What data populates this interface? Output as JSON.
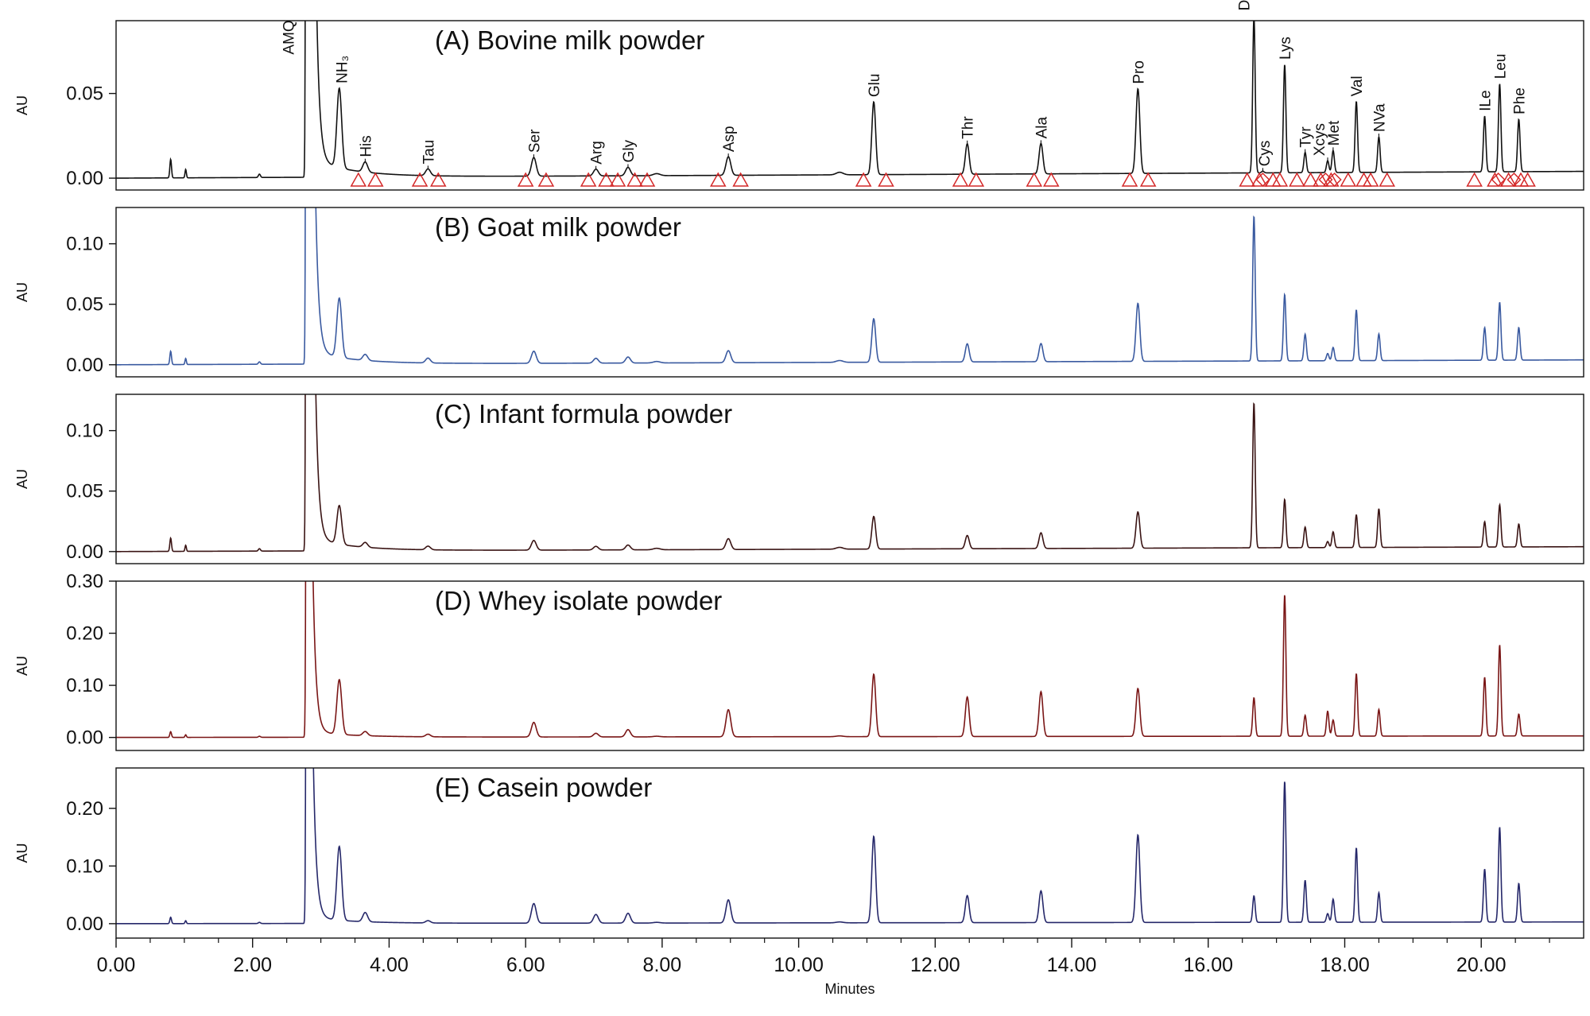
{
  "chart_data": {
    "type": "line",
    "xlabel": "Minutes",
    "ylabel": "AU",
    "xlim": [
      0,
      21.5
    ],
    "x_ticks": [
      0,
      2,
      4,
      6,
      8,
      10,
      12,
      14,
      16,
      18,
      20
    ],
    "x_tick_labels": [
      "0.00",
      "2.00",
      "4.00",
      "6.00",
      "8.00",
      "10.00",
      "12.00",
      "14.00",
      "16.00",
      "18.00",
      "20.00"
    ],
    "baseline_peaks": [
      {
        "t": 0.8,
        "h": 0.011,
        "w": 0.012
      },
      {
        "t": 1.02,
        "h": 0.005,
        "w": 0.01
      },
      {
        "t": 2.1,
        "h": 0.002,
        "w": 0.015
      },
      {
        "t": 10.6,
        "h": 0.0015,
        "w": 0.05
      },
      {
        "t": 7.92,
        "h": 0.0012,
        "w": 0.05
      }
    ],
    "amq_peak": {
      "t": 2.8,
      "height": 2.0
    },
    "panels": [
      {
        "id": "A",
        "title": "(A) Bovine milk powder",
        "color": "#111111",
        "ylim": [
          -0.007,
          0.093
        ],
        "y_ticks": [
          0.0,
          0.05
        ],
        "y_tick_labels": [
          "0.00",
          "0.05"
        ],
        "baseline_end": 0.004,
        "show_markers": true,
        "peaks": [
          {
            "name": "NH₃",
            "t": 3.27,
            "h": 0.047
          },
          {
            "name": "His",
            "t": 3.65,
            "h": 0.006
          },
          {
            "name": "Tau",
            "t": 4.57,
            "h": 0.004
          },
          {
            "name": "Ser",
            "t": 6.12,
            "h": 0.011
          },
          {
            "name": "Arg",
            "t": 7.03,
            "h": 0.004
          },
          {
            "name": "Gly",
            "t": 7.5,
            "h": 0.005
          },
          {
            "name": "Asp",
            "t": 8.97,
            "h": 0.011
          },
          {
            "name": "Glu",
            "t": 11.1,
            "h": 0.043
          },
          {
            "name": "Thr",
            "t": 12.47,
            "h": 0.018
          },
          {
            "name": "Ala",
            "t": 13.55,
            "h": 0.018
          },
          {
            "name": "Pro",
            "t": 14.97,
            "h": 0.05
          },
          {
            "name": "Deriv Peak",
            "t": 16.67,
            "h": 0.093
          },
          {
            "name": "Cys",
            "t": 16.8,
            "h": 0.001
          },
          {
            "name": "Lys",
            "t": 17.12,
            "h": 0.064
          },
          {
            "name": "Tyr",
            "t": 17.42,
            "h": 0.012
          },
          {
            "name": "Xcys",
            "t": 17.75,
            "h": 0.007
          },
          {
            "name": "Met",
            "t": 17.83,
            "h": 0.013
          },
          {
            "name": "Val",
            "t": 18.17,
            "h": 0.042
          },
          {
            "name": "NVa",
            "t": 18.5,
            "h": 0.021
          },
          {
            "name": "ILe",
            "t": 20.05,
            "h": 0.033
          },
          {
            "name": "Leu",
            "t": 20.27,
            "h": 0.052
          },
          {
            "name": "Phe",
            "t": 20.55,
            "h": 0.031
          }
        ]
      },
      {
        "id": "B",
        "title": "(B) Goat milk powder",
        "color": "#3a5aa0",
        "ylim": [
          -0.01,
          0.13
        ],
        "y_ticks": [
          0.0,
          0.05,
          0.1
        ],
        "y_tick_labels": [
          "0.00",
          "0.05",
          "0.10"
        ],
        "baseline_end": 0.004,
        "show_markers": false,
        "peaks": [
          {
            "name": "NH₃",
            "t": 3.27,
            "h": 0.049
          },
          {
            "name": "His",
            "t": 3.65,
            "h": 0.005
          },
          {
            "name": "Tau",
            "t": 4.57,
            "h": 0.004
          },
          {
            "name": "Ser",
            "t": 6.12,
            "h": 0.01
          },
          {
            "name": "Arg",
            "t": 7.03,
            "h": 0.004
          },
          {
            "name": "Gly",
            "t": 7.5,
            "h": 0.005
          },
          {
            "name": "Asp",
            "t": 8.97,
            "h": 0.01
          },
          {
            "name": "Glu",
            "t": 11.1,
            "h": 0.036
          },
          {
            "name": "Thr",
            "t": 12.47,
            "h": 0.015
          },
          {
            "name": "Ala",
            "t": 13.55,
            "h": 0.015
          },
          {
            "name": "Pro",
            "t": 14.97,
            "h": 0.048
          },
          {
            "name": "Deriv Peak",
            "t": 16.67,
            "h": 0.12
          },
          {
            "name": "Lys",
            "t": 17.12,
            "h": 0.055
          },
          {
            "name": "Tyr",
            "t": 17.42,
            "h": 0.022
          },
          {
            "name": "Xcys",
            "t": 17.75,
            "h": 0.006
          },
          {
            "name": "Met",
            "t": 17.83,
            "h": 0.011
          },
          {
            "name": "Val",
            "t": 18.17,
            "h": 0.042
          },
          {
            "name": "NVa",
            "t": 18.5,
            "h": 0.022
          },
          {
            "name": "ILe",
            "t": 20.05,
            "h": 0.027
          },
          {
            "name": "Leu",
            "t": 20.27,
            "h": 0.048
          },
          {
            "name": "Phe",
            "t": 20.55,
            "h": 0.027
          }
        ]
      },
      {
        "id": "C",
        "title": "(C) Infant formula powder",
        "color": "#3a1414",
        "ylim": [
          -0.01,
          0.13
        ],
        "y_ticks": [
          0.0,
          0.05,
          0.1
        ],
        "y_tick_labels": [
          "0.00",
          "0.05",
          "0.10"
        ],
        "baseline_end": 0.004,
        "show_markers": false,
        "peaks": [
          {
            "name": "NH₃",
            "t": 3.27,
            "h": 0.032
          },
          {
            "name": "His",
            "t": 3.65,
            "h": 0.004
          },
          {
            "name": "Tau",
            "t": 4.57,
            "h": 0.003
          },
          {
            "name": "Ser",
            "t": 6.12,
            "h": 0.008
          },
          {
            "name": "Arg",
            "t": 7.03,
            "h": 0.003
          },
          {
            "name": "Gly",
            "t": 7.5,
            "h": 0.004
          },
          {
            "name": "Asp",
            "t": 8.97,
            "h": 0.009
          },
          {
            "name": "Glu",
            "t": 11.1,
            "h": 0.027
          },
          {
            "name": "Thr",
            "t": 12.47,
            "h": 0.011
          },
          {
            "name": "Ala",
            "t": 13.55,
            "h": 0.013
          },
          {
            "name": "Pro",
            "t": 14.97,
            "h": 0.03
          },
          {
            "name": "Deriv Peak",
            "t": 16.67,
            "h": 0.12
          },
          {
            "name": "Lys",
            "t": 17.12,
            "h": 0.04
          },
          {
            "name": "Tyr",
            "t": 17.42,
            "h": 0.017
          },
          {
            "name": "Xcys",
            "t": 17.75,
            "h": 0.005
          },
          {
            "name": "Met",
            "t": 17.83,
            "h": 0.013
          },
          {
            "name": "Val",
            "t": 18.17,
            "h": 0.027
          },
          {
            "name": "NVa",
            "t": 18.5,
            "h": 0.032
          },
          {
            "name": "ILe",
            "t": 20.05,
            "h": 0.021
          },
          {
            "name": "Leu",
            "t": 20.27,
            "h": 0.035
          },
          {
            "name": "Phe",
            "t": 20.55,
            "h": 0.019
          }
        ]
      },
      {
        "id": "D",
        "title": "(D) Whey isolate powder",
        "color": "#7a1616",
        "ylim": [
          -0.025,
          0.3
        ],
        "y_ticks": [
          0.0,
          0.1,
          0.2,
          0.3
        ],
        "y_tick_labels": [
          "0.00",
          "0.10",
          "0.20",
          "0.30"
        ],
        "baseline_end": 0.003,
        "show_markers": false,
        "peaks": [
          {
            "name": "NH₃",
            "t": 3.27,
            "h": 0.105
          },
          {
            "name": "His",
            "t": 3.65,
            "h": 0.008
          },
          {
            "name": "Tau",
            "t": 4.57,
            "h": 0.005
          },
          {
            "name": "Ser",
            "t": 6.12,
            "h": 0.028
          },
          {
            "name": "Arg",
            "t": 7.03,
            "h": 0.007
          },
          {
            "name": "Gly",
            "t": 7.5,
            "h": 0.014
          },
          {
            "name": "Asp",
            "t": 8.97,
            "h": 0.052
          },
          {
            "name": "Glu",
            "t": 11.1,
            "h": 0.12
          },
          {
            "name": "Thr",
            "t": 12.47,
            "h": 0.076
          },
          {
            "name": "Ala",
            "t": 13.55,
            "h": 0.086
          },
          {
            "name": "Pro",
            "t": 14.97,
            "h": 0.092
          },
          {
            "name": "Deriv Peak",
            "t": 16.67,
            "h": 0.074
          },
          {
            "name": "Lys",
            "t": 17.12,
            "h": 0.272
          },
          {
            "name": "Tyr",
            "t": 17.42,
            "h": 0.04
          },
          {
            "name": "Xcys",
            "t": 17.75,
            "h": 0.048
          },
          {
            "name": "Met",
            "t": 17.83,
            "h": 0.031
          },
          {
            "name": "Val",
            "t": 18.17,
            "h": 0.12
          },
          {
            "name": "NVa",
            "t": 18.5,
            "h": 0.051
          },
          {
            "name": "ILe",
            "t": 20.05,
            "h": 0.113
          },
          {
            "name": "Leu",
            "t": 20.27,
            "h": 0.175
          },
          {
            "name": "Phe",
            "t": 20.55,
            "h": 0.042
          }
        ]
      },
      {
        "id": "E",
        "title": "(E) Casein powder",
        "color": "#26286a",
        "ylim": [
          -0.025,
          0.27
        ],
        "y_ticks": [
          0.0,
          0.1,
          0.2
        ],
        "y_tick_labels": [
          "0.00",
          "0.10",
          "0.20"
        ],
        "baseline_end": 0.003,
        "show_markers": false,
        "peaks": [
          {
            "name": "NH₃",
            "t": 3.27,
            "h": 0.128
          },
          {
            "name": "His",
            "t": 3.65,
            "h": 0.016
          },
          {
            "name": "Tau",
            "t": 4.57,
            "h": 0.004
          },
          {
            "name": "Ser",
            "t": 6.12,
            "h": 0.034
          },
          {
            "name": "Arg",
            "t": 7.03,
            "h": 0.015
          },
          {
            "name": "Gly",
            "t": 7.5,
            "h": 0.017
          },
          {
            "name": "Asp",
            "t": 8.97,
            "h": 0.04
          },
          {
            "name": "Glu",
            "t": 11.1,
            "h": 0.15
          },
          {
            "name": "Thr",
            "t": 12.47,
            "h": 0.047
          },
          {
            "name": "Ala",
            "t": 13.55,
            "h": 0.055
          },
          {
            "name": "Pro",
            "t": 14.97,
            "h": 0.152
          },
          {
            "name": "Deriv Peak",
            "t": 16.67,
            "h": 0.046
          },
          {
            "name": "Lys",
            "t": 17.12,
            "h": 0.245
          },
          {
            "name": "Tyr",
            "t": 17.42,
            "h": 0.073
          },
          {
            "name": "Xcys",
            "t": 17.75,
            "h": 0.015
          },
          {
            "name": "Met",
            "t": 17.83,
            "h": 0.04
          },
          {
            "name": "Val",
            "t": 18.17,
            "h": 0.129
          },
          {
            "name": "NVa",
            "t": 18.5,
            "h": 0.051
          },
          {
            "name": "ILe",
            "t": 20.05,
            "h": 0.092
          },
          {
            "name": "Leu",
            "t": 20.27,
            "h": 0.165
          },
          {
            "name": "Phe",
            "t": 20.55,
            "h": 0.067
          }
        ]
      }
    ],
    "peak_labels": [
      {
        "text": "AMQ",
        "t": 2.52
      },
      {
        "text": "NH₃",
        "t": 3.3
      },
      {
        "text": "His",
        "t": 3.65
      },
      {
        "text": "Tau",
        "t": 4.57
      },
      {
        "text": "Ser",
        "t": 6.12
      },
      {
        "text": "Arg",
        "t": 7.03
      },
      {
        "text": "Gly",
        "t": 7.5
      },
      {
        "text": "Asp",
        "t": 8.97
      },
      {
        "text": "Glu",
        "t": 11.1
      },
      {
        "text": "Thr",
        "t": 12.47
      },
      {
        "text": "Ala",
        "t": 13.55
      },
      {
        "text": "Pro",
        "t": 14.97
      },
      {
        "text": "Deriv Peak",
        "t": 16.52
      },
      {
        "text": "Cys",
        "t": 16.82
      },
      {
        "text": "Lys",
        "t": 17.12
      },
      {
        "text": "Tyr",
        "t": 17.42
      },
      {
        "text": "Xcys",
        "t": 17.62
      },
      {
        "text": "Met",
        "t": 17.83
      },
      {
        "text": "Val",
        "t": 18.17
      },
      {
        "text": "NVa",
        "t": 18.5
      },
      {
        "text": "ILe",
        "t": 20.05
      },
      {
        "text": "Leu",
        "t": 20.27
      },
      {
        "text": "Phe",
        "t": 20.55
      }
    ],
    "integration_markers": [
      3.55,
      3.8,
      4.45,
      4.72,
      6.0,
      6.3,
      6.92,
      7.18,
      7.35,
      7.6,
      7.78,
      8.82,
      9.15,
      10.95,
      11.28,
      12.37,
      12.6,
      13.45,
      13.7,
      14.85,
      15.12,
      16.57,
      16.75,
      16.95,
      17.05,
      17.3,
      17.5,
      17.65,
      17.8,
      18.05,
      18.28,
      18.38,
      18.62,
      19.9,
      20.2,
      20.4,
      20.58,
      20.68
    ],
    "integration_diamonds": [
      16.8,
      17.72,
      17.85,
      20.25,
      20.48
    ]
  }
}
